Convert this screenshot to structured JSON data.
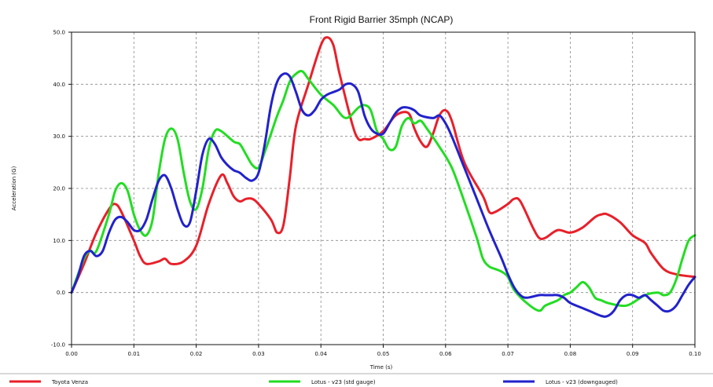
{
  "chart_data": {
    "type": "line",
    "title": "Front Rigid Barrier 35mph (NCAP)",
    "xlabel": "Time (s)",
    "ylabel": "Acceleration (G)",
    "xlim": [
      0,
      0.1
    ],
    "ylim": [
      -10,
      50
    ],
    "x_ticks": [
      "0.00",
      "0.01",
      "0.02",
      "0.03",
      "0.04",
      "0.05",
      "0.06",
      "0.07",
      "0.08",
      "0.09",
      "0.10"
    ],
    "y_ticks": [
      "-10.0",
      "0.0",
      "10.0",
      "20.0",
      "30.0",
      "40.0",
      "50.0"
    ],
    "grid": true,
    "legend_position": "bottom",
    "series": [
      {
        "name": "Toyota Venza",
        "color": "#e8202a",
        "points": [
          [
            0.0,
            0.0
          ],
          [
            0.002,
            5.5
          ],
          [
            0.004,
            11.5
          ],
          [
            0.006,
            16.0
          ],
          [
            0.007,
            17.0
          ],
          [
            0.008,
            15.5
          ],
          [
            0.01,
            10.0
          ],
          [
            0.011,
            7.0
          ],
          [
            0.012,
            5.5
          ],
          [
            0.014,
            6.0
          ],
          [
            0.015,
            6.5
          ],
          [
            0.016,
            5.5
          ],
          [
            0.018,
            6.0
          ],
          [
            0.02,
            9.0
          ],
          [
            0.022,
            17.0
          ],
          [
            0.024,
            22.5
          ],
          [
            0.025,
            21.0
          ],
          [
            0.026,
            18.5
          ],
          [
            0.027,
            17.5
          ],
          [
            0.028,
            18.0
          ],
          [
            0.029,
            18.0
          ],
          [
            0.03,
            17.0
          ],
          [
            0.032,
            14.0
          ],
          [
            0.033,
            11.5
          ],
          [
            0.034,
            13.0
          ],
          [
            0.035,
            22.0
          ],
          [
            0.036,
            32.0
          ],
          [
            0.038,
            40.0
          ],
          [
            0.04,
            47.5
          ],
          [
            0.041,
            49.0
          ],
          [
            0.042,
            47.5
          ],
          [
            0.043,
            42.0
          ],
          [
            0.045,
            32.5
          ],
          [
            0.046,
            29.5
          ],
          [
            0.047,
            29.5
          ],
          [
            0.048,
            29.5
          ],
          [
            0.05,
            31.0
          ],
          [
            0.052,
            34.0
          ],
          [
            0.054,
            34.5
          ],
          [
            0.055,
            31.5
          ],
          [
            0.056,
            29.0
          ],
          [
            0.057,
            28.0
          ],
          [
            0.058,
            30.5
          ],
          [
            0.059,
            34.0
          ],
          [
            0.06,
            35.0
          ],
          [
            0.061,
            33.0
          ],
          [
            0.063,
            25.0
          ],
          [
            0.066,
            18.5
          ],
          [
            0.067,
            15.5
          ],
          [
            0.068,
            15.5
          ],
          [
            0.07,
            17.0
          ],
          [
            0.071,
            18.0
          ],
          [
            0.072,
            17.5
          ],
          [
            0.074,
            12.5
          ],
          [
            0.075,
            10.5
          ],
          [
            0.076,
            10.5
          ],
          [
            0.078,
            12.0
          ],
          [
            0.08,
            11.5
          ],
          [
            0.082,
            12.5
          ],
          [
            0.084,
            14.5
          ],
          [
            0.085,
            15.0
          ],
          [
            0.086,
            15.0
          ],
          [
            0.088,
            13.5
          ],
          [
            0.09,
            11.0
          ],
          [
            0.092,
            9.5
          ],
          [
            0.093,
            7.5
          ],
          [
            0.095,
            4.5
          ],
          [
            0.097,
            3.5
          ],
          [
            0.1,
            3.0
          ]
        ]
      },
      {
        "name": "Lotus - v23 (std gauge)",
        "color": "#22dd22",
        "points": [
          [
            0.0,
            0.0
          ],
          [
            0.002,
            6.5
          ],
          [
            0.003,
            8.0
          ],
          [
            0.004,
            8.0
          ],
          [
            0.006,
            15.0
          ],
          [
            0.007,
            19.5
          ],
          [
            0.008,
            21.0
          ],
          [
            0.009,
            19.5
          ],
          [
            0.01,
            15.0
          ],
          [
            0.011,
            12.0
          ],
          [
            0.012,
            11.0
          ],
          [
            0.013,
            14.0
          ],
          [
            0.014,
            23.0
          ],
          [
            0.015,
            29.5
          ],
          [
            0.016,
            31.5
          ],
          [
            0.017,
            29.5
          ],
          [
            0.018,
            23.0
          ],
          [
            0.019,
            17.5
          ],
          [
            0.02,
            16.0
          ],
          [
            0.021,
            20.0
          ],
          [
            0.022,
            27.5
          ],
          [
            0.023,
            31.0
          ],
          [
            0.024,
            31.0
          ],
          [
            0.026,
            29.0
          ],
          [
            0.027,
            28.5
          ],
          [
            0.028,
            26.5
          ],
          [
            0.029,
            24.5
          ],
          [
            0.03,
            24.0
          ],
          [
            0.031,
            27.0
          ],
          [
            0.032,
            30.5
          ],
          [
            0.033,
            34.0
          ],
          [
            0.034,
            37.0
          ],
          [
            0.035,
            40.5
          ],
          [
            0.036,
            42.0
          ],
          [
            0.037,
            42.5
          ],
          [
            0.038,
            41.0
          ],
          [
            0.04,
            38.0
          ],
          [
            0.042,
            36.0
          ],
          [
            0.044,
            33.5
          ],
          [
            0.046,
            35.5
          ],
          [
            0.047,
            36.0
          ],
          [
            0.048,
            35.0
          ],
          [
            0.049,
            31.0
          ],
          [
            0.05,
            29.5
          ],
          [
            0.051,
            27.5
          ],
          [
            0.052,
            28.0
          ],
          [
            0.053,
            32.0
          ],
          [
            0.054,
            33.5
          ],
          [
            0.055,
            32.5
          ],
          [
            0.056,
            33.0
          ],
          [
            0.057,
            31.5
          ],
          [
            0.059,
            28.0
          ],
          [
            0.061,
            24.0
          ],
          [
            0.063,
            17.5
          ],
          [
            0.065,
            10.5
          ],
          [
            0.066,
            6.5
          ],
          [
            0.067,
            5.0
          ],
          [
            0.068,
            4.5
          ],
          [
            0.069,
            4.0
          ],
          [
            0.07,
            3.0
          ],
          [
            0.071,
            0.5
          ],
          [
            0.073,
            -2.0
          ],
          [
            0.075,
            -3.5
          ],
          [
            0.076,
            -2.5
          ],
          [
            0.078,
            -1.5
          ],
          [
            0.079,
            -0.5
          ],
          [
            0.08,
            0.0
          ],
          [
            0.081,
            1.0
          ],
          [
            0.082,
            2.0
          ],
          [
            0.083,
            1.0
          ],
          [
            0.084,
            -1.0
          ],
          [
            0.085,
            -1.5
          ],
          [
            0.086,
            -2.0
          ],
          [
            0.088,
            -2.5
          ],
          [
            0.089,
            -2.5
          ],
          [
            0.09,
            -2.0
          ],
          [
            0.092,
            -0.5
          ],
          [
            0.094,
            0.0
          ],
          [
            0.095,
            -0.5
          ],
          [
            0.096,
            0.0
          ],
          [
            0.097,
            2.5
          ],
          [
            0.098,
            6.5
          ],
          [
            0.099,
            10.0
          ],
          [
            0.1,
            11.0
          ]
        ]
      },
      {
        "name": "Lotus - v23 (downgauged)",
        "color": "#2222cc",
        "points": [
          [
            0.0,
            0.0
          ],
          [
            0.001,
            3.0
          ],
          [
            0.002,
            7.0
          ],
          [
            0.003,
            8.0
          ],
          [
            0.004,
            7.0
          ],
          [
            0.005,
            8.0
          ],
          [
            0.006,
            11.5
          ],
          [
            0.007,
            14.0
          ],
          [
            0.008,
            14.5
          ],
          [
            0.009,
            13.5
          ],
          [
            0.01,
            12.0
          ],
          [
            0.011,
            12.0
          ],
          [
            0.012,
            14.0
          ],
          [
            0.013,
            18.0
          ],
          [
            0.014,
            21.5
          ],
          [
            0.015,
            22.5
          ],
          [
            0.016,
            20.0
          ],
          [
            0.017,
            16.0
          ],
          [
            0.018,
            13.0
          ],
          [
            0.019,
            13.5
          ],
          [
            0.02,
            19.5
          ],
          [
            0.021,
            26.5
          ],
          [
            0.022,
            29.5
          ],
          [
            0.023,
            28.5
          ],
          [
            0.024,
            26.0
          ],
          [
            0.025,
            24.5
          ],
          [
            0.026,
            23.5
          ],
          [
            0.027,
            23.0
          ],
          [
            0.028,
            22.0
          ],
          [
            0.029,
            21.5
          ],
          [
            0.03,
            23.0
          ],
          [
            0.031,
            28.5
          ],
          [
            0.032,
            36.0
          ],
          [
            0.033,
            40.5
          ],
          [
            0.034,
            42.0
          ],
          [
            0.035,
            41.5
          ],
          [
            0.036,
            38.5
          ],
          [
            0.037,
            35.0
          ],
          [
            0.038,
            34.0
          ],
          [
            0.039,
            35.0
          ],
          [
            0.04,
            37.0
          ],
          [
            0.041,
            38.0
          ],
          [
            0.042,
            38.5
          ],
          [
            0.043,
            39.0
          ],
          [
            0.044,
            40.0
          ],
          [
            0.045,
            40.0
          ],
          [
            0.046,
            38.5
          ],
          [
            0.047,
            34.0
          ],
          [
            0.048,
            31.5
          ],
          [
            0.049,
            30.5
          ],
          [
            0.05,
            30.5
          ],
          [
            0.051,
            32.5
          ],
          [
            0.052,
            34.5
          ],
          [
            0.053,
            35.5
          ],
          [
            0.054,
            35.5
          ],
          [
            0.055,
            35.0
          ],
          [
            0.056,
            34.0
          ],
          [
            0.058,
            33.5
          ],
          [
            0.059,
            34.0
          ],
          [
            0.06,
            32.5
          ],
          [
            0.061,
            30.0
          ],
          [
            0.063,
            24.0
          ],
          [
            0.065,
            18.0
          ],
          [
            0.067,
            12.0
          ],
          [
            0.069,
            6.5
          ],
          [
            0.07,
            3.5
          ],
          [
            0.071,
            1.0
          ],
          [
            0.072,
            -0.5
          ],
          [
            0.073,
            -1.0
          ],
          [
            0.075,
            -0.5
          ],
          [
            0.076,
            -0.5
          ],
          [
            0.077,
            -0.5
          ],
          [
            0.078,
            -0.5
          ],
          [
            0.079,
            -1.0
          ],
          [
            0.08,
            -2.0
          ],
          [
            0.082,
            -3.0
          ],
          [
            0.083,
            -3.5
          ],
          [
            0.085,
            -4.5
          ],
          [
            0.086,
            -4.5
          ],
          [
            0.087,
            -3.5
          ],
          [
            0.088,
            -1.5
          ],
          [
            0.089,
            -0.5
          ],
          [
            0.09,
            -0.5
          ],
          [
            0.091,
            -1.0
          ],
          [
            0.092,
            -0.5
          ],
          [
            0.093,
            -1.5
          ],
          [
            0.094,
            -2.5
          ],
          [
            0.095,
            -3.5
          ],
          [
            0.096,
            -3.5
          ],
          [
            0.097,
            -2.5
          ],
          [
            0.098,
            -0.5
          ],
          [
            0.099,
            1.5
          ],
          [
            0.1,
            3.0
          ]
        ]
      }
    ]
  }
}
